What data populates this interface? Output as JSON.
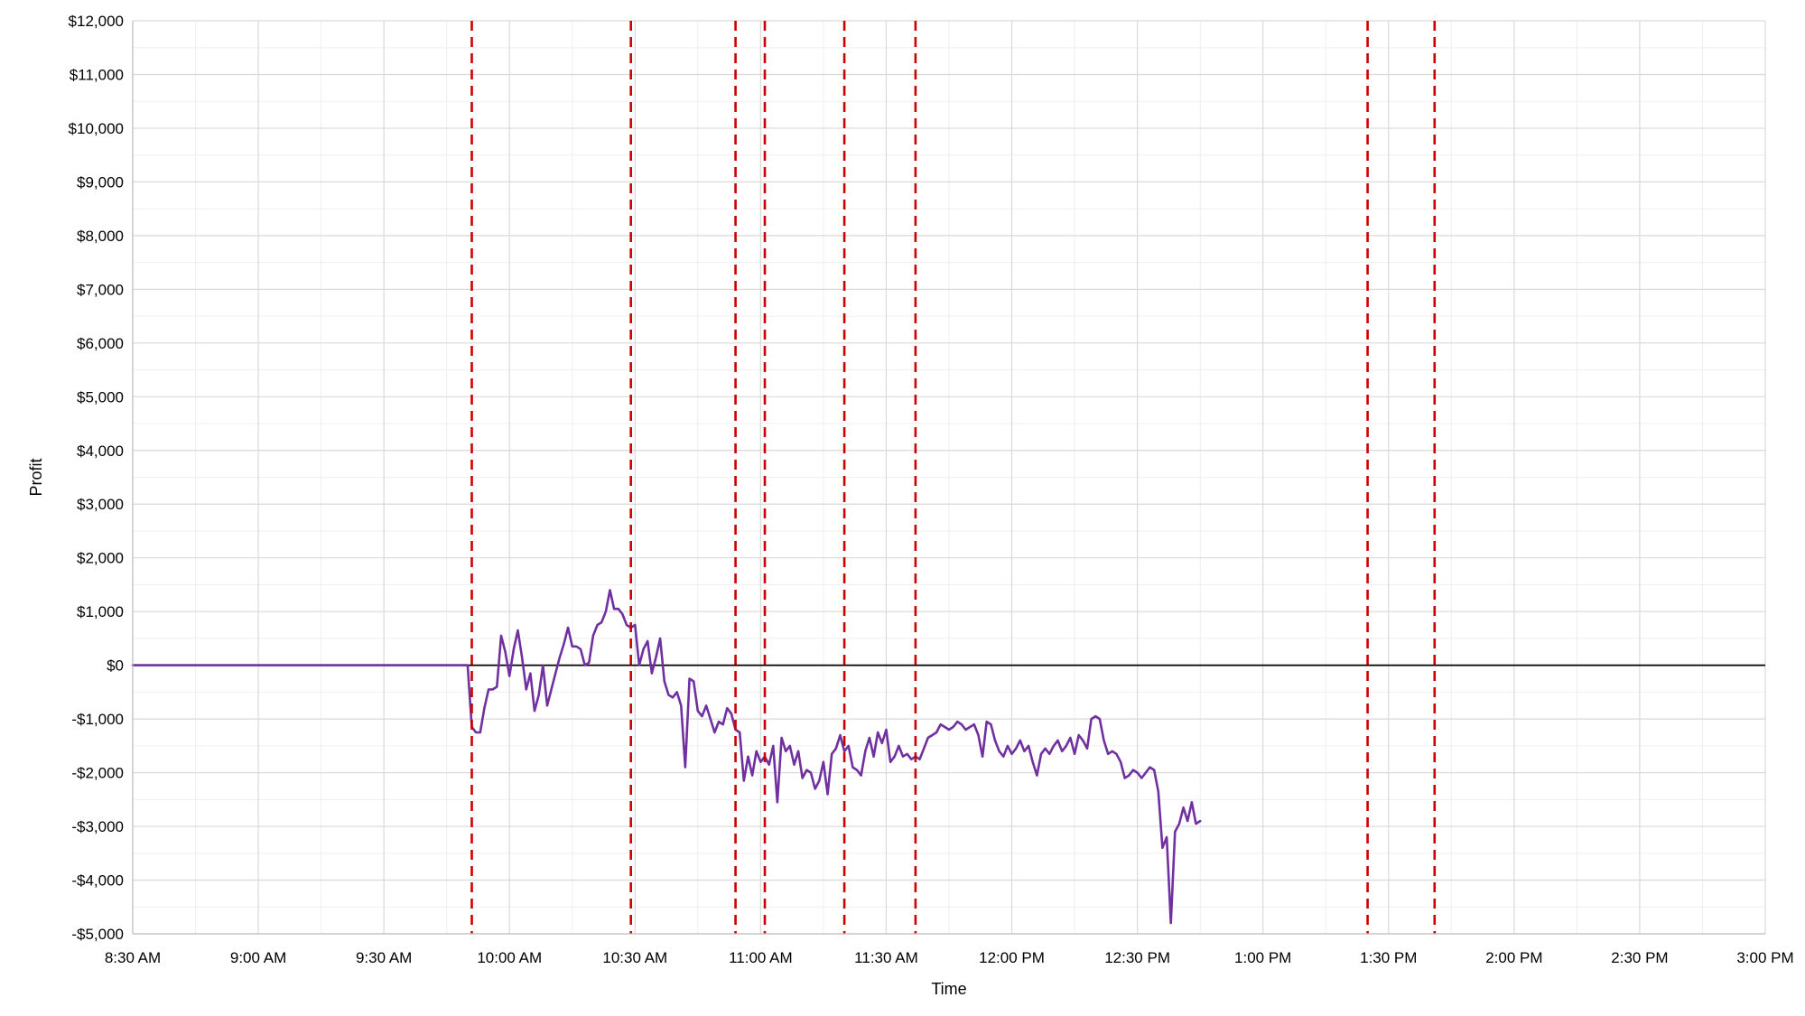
{
  "chart_data": {
    "type": "line",
    "title": "",
    "xlabel": "Time",
    "ylabel": "Profit",
    "grid": true,
    "xlim": [
      "8:30 AM",
      "3:00 PM"
    ],
    "ylim": [
      -5000,
      12000
    ],
    "x_tick_labels": [
      "8:30 AM",
      "9:00 AM",
      "9:30 AM",
      "10:00 AM",
      "10:30 AM",
      "11:00 AM",
      "11:30 AM",
      "12:00 PM",
      "12:30 PM",
      "1:00 PM",
      "1:30 PM",
      "2:00 PM",
      "2:30 PM",
      "3:00 PM"
    ],
    "y_ticks": [
      -5000,
      -4000,
      -3000,
      -2000,
      -1000,
      0,
      1000,
      2000,
      3000,
      4000,
      5000,
      6000,
      7000,
      8000,
      9000,
      10000,
      11000,
      12000
    ],
    "y_tick_labels": [
      "-$5,000",
      "-$4,000",
      "-$3,000",
      "-$2,000",
      "-$1,000",
      "$0",
      "$1,000",
      "$2,000",
      "$3,000",
      "$4,000",
      "$5,000",
      "$6,000",
      "$7,000",
      "$8,000",
      "$9,000",
      "$10,000",
      "$11,000",
      "$12,000"
    ],
    "zero_line": {
      "value": 0,
      "color": "#000000"
    },
    "vertical_markers": {
      "style": "dashed",
      "color": "#cc0000",
      "x": [
        "9:51 AM",
        "10:29 AM",
        "10:54 AM",
        "11:01 AM",
        "11:20 AM",
        "11:37 AM",
        "1:25 PM",
        "1:41 PM"
      ]
    },
    "series": [
      {
        "color": "#7030a0",
        "points": [
          [
            "8:30 AM",
            0
          ],
          [
            "9:50 AM",
            0
          ],
          [
            "9:51 AM",
            -1150
          ],
          [
            "9:52 AM",
            -1250
          ],
          [
            "9:53 AM",
            -1250
          ],
          [
            "9:54 AM",
            -800
          ],
          [
            "9:55 AM",
            -450
          ],
          [
            "9:56 AM",
            -450
          ],
          [
            "9:57 AM",
            -400
          ],
          [
            "9:58 AM",
            550
          ],
          [
            "9:59 AM",
            250
          ],
          [
            "10:00 AM",
            -200
          ],
          [
            "10:01 AM",
            300
          ],
          [
            "10:02 AM",
            650
          ],
          [
            "10:03 AM",
            150
          ],
          [
            "10:04 AM",
            -450
          ],
          [
            "10:05 AM",
            -150
          ],
          [
            "10:06 AM",
            -850
          ],
          [
            "10:07 AM",
            -550
          ],
          [
            "10:08 AM",
            0
          ],
          [
            "10:09 AM",
            -750
          ],
          [
            "10:10 AM",
            -450
          ],
          [
            "10:11 AM",
            -150
          ],
          [
            "10:12 AM",
            150
          ],
          [
            "10:13 AM",
            400
          ],
          [
            "10:14 AM",
            700
          ],
          [
            "10:15 AM",
            350
          ],
          [
            "10:16 AM",
            350
          ],
          [
            "10:17 AM",
            300
          ],
          [
            "10:18 AM",
            0
          ],
          [
            "10:19 AM",
            50
          ],
          [
            "10:20 AM",
            550
          ],
          [
            "10:21 AM",
            750
          ],
          [
            "10:22 AM",
            800
          ],
          [
            "10:23 AM",
            1000
          ],
          [
            "10:24 AM",
            1400
          ],
          [
            "10:25 AM",
            1050
          ],
          [
            "10:26 AM",
            1050
          ],
          [
            "10:27 AM",
            950
          ],
          [
            "10:28 AM",
            750
          ],
          [
            "10:29 AM",
            700
          ],
          [
            "10:30 AM",
            750
          ],
          [
            "10:31 AM",
            0
          ],
          [
            "10:32 AM",
            300
          ],
          [
            "10:33 AM",
            450
          ],
          [
            "10:34 AM",
            -150
          ],
          [
            "10:35 AM",
            150
          ],
          [
            "10:36 AM",
            500
          ],
          [
            "10:37 AM",
            -300
          ],
          [
            "10:38 AM",
            -550
          ],
          [
            "10:39 AM",
            -600
          ],
          [
            "10:40 AM",
            -500
          ],
          [
            "10:41 AM",
            -750
          ],
          [
            "10:42 AM",
            -1900
          ],
          [
            "10:43 AM",
            -250
          ],
          [
            "10:44 AM",
            -300
          ],
          [
            "10:45 AM",
            -850
          ],
          [
            "10:46 AM",
            -950
          ],
          [
            "10:47 AM",
            -750
          ],
          [
            "10:48 AM",
            -1000
          ],
          [
            "10:49 AM",
            -1250
          ],
          [
            "10:50 AM",
            -1050
          ],
          [
            "10:51 AM",
            -1100
          ],
          [
            "10:52 AM",
            -800
          ],
          [
            "10:53 AM",
            -900
          ],
          [
            "10:54 AM",
            -1200
          ],
          [
            "10:55 AM",
            -1250
          ],
          [
            "10:56 AM",
            -2150
          ],
          [
            "10:57 AM",
            -1700
          ],
          [
            "10:58 AM",
            -2050
          ],
          [
            "10:59 AM",
            -1600
          ],
          [
            "11:00 AM",
            -1800
          ],
          [
            "11:01 AM",
            -1700
          ],
          [
            "11:02 AM",
            -1850
          ],
          [
            "11:03 AM",
            -1500
          ],
          [
            "11:04 AM",
            -2550
          ],
          [
            "11:05 AM",
            -1350
          ],
          [
            "11:06 AM",
            -1600
          ],
          [
            "11:07 AM",
            -1500
          ],
          [
            "11:08 AM",
            -1850
          ],
          [
            "11:09 AM",
            -1600
          ],
          [
            "11:10 AM",
            -2100
          ],
          [
            "11:11 AM",
            -1950
          ],
          [
            "11:12 AM",
            -2000
          ],
          [
            "11:13 AM",
            -2300
          ],
          [
            "11:14 AM",
            -2150
          ],
          [
            "11:15 AM",
            -1800
          ],
          [
            "11:16 AM",
            -2400
          ],
          [
            "11:17 AM",
            -1650
          ],
          [
            "11:18 AM",
            -1550
          ],
          [
            "11:19 AM",
            -1300
          ],
          [
            "11:20 AM",
            -1600
          ],
          [
            "11:21 AM",
            -1500
          ],
          [
            "11:22 AM",
            -1900
          ],
          [
            "11:23 AM",
            -1950
          ],
          [
            "11:24 AM",
            -2050
          ],
          [
            "11:25 AM",
            -1600
          ],
          [
            "11:26 AM",
            -1350
          ],
          [
            "11:27 AM",
            -1700
          ],
          [
            "11:28 AM",
            -1250
          ],
          [
            "11:29 AM",
            -1450
          ],
          [
            "11:30 AM",
            -1200
          ],
          [
            "11:31 AM",
            -1800
          ],
          [
            "11:32 AM",
            -1700
          ],
          [
            "11:33 AM",
            -1500
          ],
          [
            "11:34 AM",
            -1700
          ],
          [
            "11:35 AM",
            -1650
          ],
          [
            "11:36 AM",
            -1750
          ],
          [
            "11:37 AM",
            -1700
          ],
          [
            "11:38 AM",
            -1750
          ],
          [
            "11:39 AM",
            -1550
          ],
          [
            "11:40 AM",
            -1350
          ],
          [
            "11:41 AM",
            -1300
          ],
          [
            "11:42 AM",
            -1250
          ],
          [
            "11:43 AM",
            -1100
          ],
          [
            "11:44 AM",
            -1150
          ],
          [
            "11:45 AM",
            -1200
          ],
          [
            "11:46 AM",
            -1150
          ],
          [
            "11:47 AM",
            -1050
          ],
          [
            "11:48 AM",
            -1100
          ],
          [
            "11:49 AM",
            -1200
          ],
          [
            "11:50 AM",
            -1150
          ],
          [
            "11:51 AM",
            -1100
          ],
          [
            "11:52 AM",
            -1300
          ],
          [
            "11:53 AM",
            -1700
          ],
          [
            "11:54 AM",
            -1050
          ],
          [
            "11:55 AM",
            -1100
          ],
          [
            "11:56 AM",
            -1400
          ],
          [
            "11:57 AM",
            -1600
          ],
          [
            "11:58 AM",
            -1700
          ],
          [
            "11:59 AM",
            -1500
          ],
          [
            "12:00 PM",
            -1650
          ],
          [
            "12:01 PM",
            -1550
          ],
          [
            "12:02 PM",
            -1400
          ],
          [
            "12:03 PM",
            -1600
          ],
          [
            "12:04 PM",
            -1500
          ],
          [
            "12:05 PM",
            -1800
          ],
          [
            "12:06 PM",
            -2050
          ],
          [
            "12:07 PM",
            -1650
          ],
          [
            "12:08 PM",
            -1550
          ],
          [
            "12:09 PM",
            -1650
          ],
          [
            "12:10 PM",
            -1500
          ],
          [
            "12:11 PM",
            -1400
          ],
          [
            "12:12 PM",
            -1600
          ],
          [
            "12:13 PM",
            -1500
          ],
          [
            "12:14 PM",
            -1350
          ],
          [
            "12:15 PM",
            -1650
          ],
          [
            "12:16 PM",
            -1300
          ],
          [
            "12:17 PM",
            -1400
          ],
          [
            "12:18 PM",
            -1550
          ],
          [
            "12:19 PM",
            -1000
          ],
          [
            "12:20 PM",
            -950
          ],
          [
            "12:21 PM",
            -1000
          ],
          [
            "12:22 PM",
            -1400
          ],
          [
            "12:23 PM",
            -1650
          ],
          [
            "12:24 PM",
            -1600
          ],
          [
            "12:25 PM",
            -1650
          ],
          [
            "12:26 PM",
            -1800
          ],
          [
            "12:27 PM",
            -2100
          ],
          [
            "12:28 PM",
            -2050
          ],
          [
            "12:29 PM",
            -1950
          ],
          [
            "12:30 PM",
            -2000
          ],
          [
            "12:31 PM",
            -2100
          ],
          [
            "12:32 PM",
            -2000
          ],
          [
            "12:33 PM",
            -1900
          ],
          [
            "12:34 PM",
            -1950
          ],
          [
            "12:35 PM",
            -2350
          ],
          [
            "12:36 PM",
            -3400
          ],
          [
            "12:37 PM",
            -3200
          ],
          [
            "12:38 PM",
            -4800
          ],
          [
            "12:39 PM",
            -3100
          ],
          [
            "12:40 PM",
            -2950
          ],
          [
            "12:41 PM",
            -2650
          ],
          [
            "12:42 PM",
            -2900
          ],
          [
            "12:43 PM",
            -2550
          ],
          [
            "12:44 PM",
            -2950
          ],
          [
            "12:45 PM",
            -2900
          ]
        ]
      }
    ]
  }
}
